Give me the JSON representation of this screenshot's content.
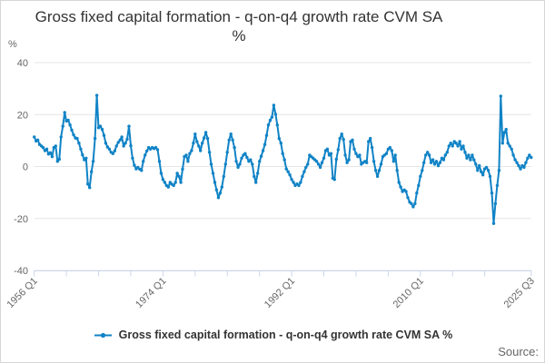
{
  "title": {
    "line1": "Gross fixed capital formation - q-on-q4 growth rate CVM SA",
    "line2": "%"
  },
  "y_axis": {
    "unit_label": "%",
    "tick_labels": [
      "40",
      "20",
      "0",
      "-20",
      "-40"
    ]
  },
  "x_axis": {
    "labeled_tick_labels": [
      "1956 Q1",
      "1974 Q1",
      "1992 Q1",
      "2010 Q1",
      "2025 Q3"
    ]
  },
  "legend": {
    "series_label": "Gross fixed capital formation - q-on-q4 growth rate CVM SA %"
  },
  "credits": {
    "label": "Source:"
  },
  "colors": {
    "series": "#1083c6",
    "gridline": "#e6e6e6",
    "axis_line": "#ccd6eb",
    "axis_label": "#666666",
    "title_text": "#333333",
    "legend_text": "#333333",
    "credits_text": "#666666"
  },
  "chart_data": {
    "type": "line",
    "title": "Gross fixed capital formation - q-on-q4 growth rate CVM SA %",
    "ylabel": "%",
    "ylim": [
      -40,
      40
    ],
    "y_ticks": [
      40,
      20,
      0,
      -20,
      -40
    ],
    "grid": true,
    "legend_position": "bottom",
    "x_start": "1956 Q1",
    "x_end": "2025 Q3",
    "frequency": "quarterly",
    "x_labeled_tick_indices": [
      0,
      72,
      144,
      216,
      278
    ],
    "x_labeled_tick_labels": [
      "1956 Q1",
      "1974 Q1",
      "1992 Q1",
      "2010 Q1",
      "2025 Q3"
    ],
    "x_minor_tick_step": 18,
    "series": [
      {
        "name": "Gross fixed capital formation - q-on-q4 growth rate CVM SA %",
        "color": "#1083c6",
        "marker": "circle",
        "values": [
          11.4,
          9.8,
          10.2,
          8.5,
          7.9,
          7.3,
          6.1,
          6.7,
          4.8,
          5.3,
          3.8,
          7.3,
          7.9,
          2.0,
          2.8,
          11.4,
          15.5,
          20.8,
          17.5,
          17.8,
          16.0,
          14.0,
          12.2,
          11.0,
          10.8,
          9.0,
          6.7,
          4.5,
          2.6,
          3.2,
          -6.7,
          -8.1,
          -2.0,
          2.0,
          10.8,
          27.4,
          14.9,
          15.5,
          14.3,
          12.0,
          9.0,
          7.5,
          6.7,
          5.5,
          5.0,
          6.0,
          7.9,
          9.3,
          10.2,
          11.4,
          7.9,
          9.0,
          10.5,
          15.5,
          8.0,
          3.2,
          0.5,
          -0.9,
          -0.3,
          -1.0,
          -1.5,
          2.0,
          4.4,
          6.0,
          7.3,
          6.7,
          7.3,
          6.9,
          7.3,
          6.5,
          2.0,
          -2.6,
          -5.0,
          -6.1,
          -7.3,
          -7.9,
          -6.1,
          -6.8,
          -7.3,
          -6.1,
          -2.6,
          -3.8,
          -6.1,
          -1.0,
          3.8,
          4.4,
          2.0,
          5.0,
          6.1,
          9.0,
          12.5,
          9.6,
          7.9,
          6.1,
          9.0,
          11.0,
          13.1,
          10.8,
          5.5,
          0.9,
          -2.6,
          -6.1,
          -9.0,
          -12.0,
          -10.2,
          -7.9,
          -3.8,
          0.9,
          5.5,
          10.2,
          12.5,
          10.2,
          7.3,
          2.0,
          -0.3,
          0.9,
          3.2,
          4.4,
          5.0,
          3.5,
          2.0,
          2.6,
          0.9,
          -3.8,
          -6.1,
          -2.6,
          2.0,
          4.0,
          6.1,
          8.5,
          12.0,
          16.0,
          17.8,
          19.0,
          23.6,
          20.1,
          16.0,
          10.8,
          9.0,
          5.0,
          2.6,
          -0.9,
          -2.0,
          -3.2,
          -5.0,
          -6.1,
          -7.3,
          -6.7,
          -7.3,
          -6.1,
          -3.8,
          -2.0,
          -0.3,
          0.9,
          4.4,
          3.8,
          3.2,
          2.6,
          2.0,
          0.9,
          -0.3,
          1.5,
          3.2,
          6.1,
          6.7,
          4.4,
          5.0,
          -4.5,
          -5.0,
          2.8,
          6.5,
          10.8,
          12.5,
          10.4,
          4.4,
          1.5,
          2.6,
          9.6,
          10.2,
          6.7,
          5.0,
          3.8,
          4.4,
          0.9,
          1.5,
          2.0,
          1.5,
          9.6,
          10.8,
          7.3,
          2.0,
          -1.5,
          -3.8,
          -1.5,
          0.9,
          3.8,
          4.4,
          5.0,
          6.7,
          7.3,
          6.1,
          2.0,
          4.4,
          -1.5,
          -6.1,
          -7.9,
          -9.6,
          -9.0,
          -9.6,
          -12.0,
          -13.7,
          -14.3,
          -15.5,
          -14.3,
          -10.2,
          -7.3,
          -3.8,
          -1.5,
          1.5,
          4.4,
          5.5,
          4.4,
          1.5,
          2.6,
          0.9,
          2.0,
          0.3,
          1.5,
          3.2,
          2.6,
          4.4,
          5.5,
          7.9,
          9.0,
          7.9,
          9.6,
          9.0,
          7.9,
          9.6,
          6.7,
          7.9,
          5.5,
          3.2,
          4.4,
          2.6,
          4.4,
          2.6,
          0.9,
          -1.5,
          0.3,
          -2.0,
          -3.2,
          -0.9,
          -0.3,
          -1.5,
          -3.8,
          -10.2,
          -21.9,
          -14.3,
          -7.3,
          -1.5,
          27.1,
          9.0,
          13.1,
          14.3,
          9.0,
          7.9,
          6.7,
          4.4,
          2.6,
          1.5,
          0.3,
          -0.9,
          0.3,
          -0.3,
          1.5,
          3.2,
          4.4,
          3.5
        ]
      }
    ]
  }
}
